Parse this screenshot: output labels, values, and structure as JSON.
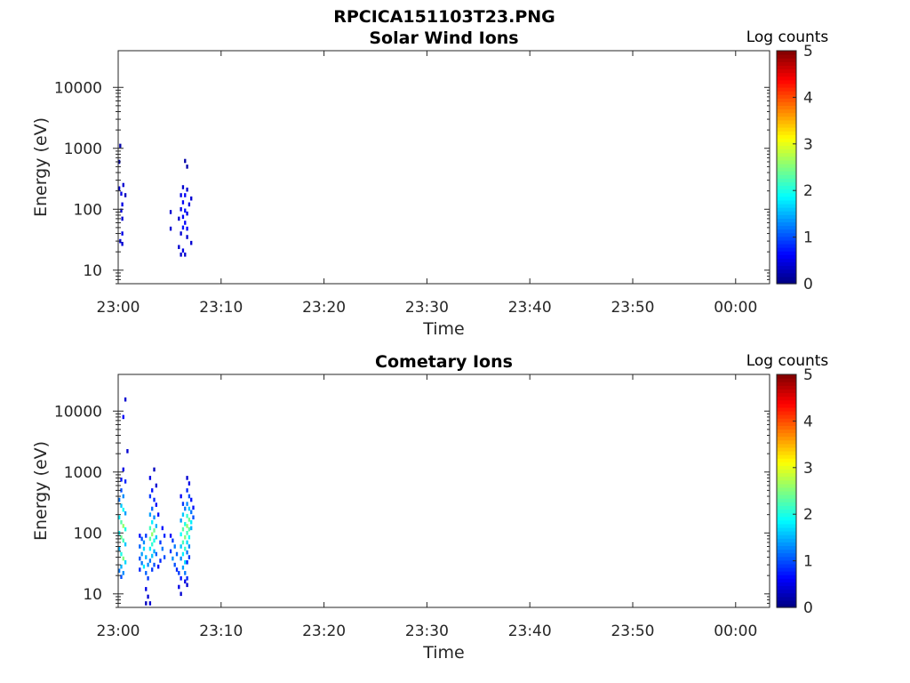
{
  "figure_title": "RPCICA151103T23.PNG",
  "chart_data": [
    {
      "type": "heatmap",
      "title": "Solar Wind Ions",
      "xlabel": "Time",
      "ylabel": "Energy (eV)",
      "x_ticks": [
        "23:00",
        "23:10",
        "23:20",
        "23:30",
        "23:40",
        "23:50",
        "00:00"
      ],
      "x_range_minutes": [
        0,
        63.3
      ],
      "y_scale": "log",
      "y_ticks": [
        "10",
        "100",
        "1000",
        "10000"
      ],
      "y_range": [
        6,
        40000
      ],
      "colorbar": {
        "label": "Log counts",
        "range": [
          0,
          5
        ],
        "ticks": [
          "0",
          "1",
          "2",
          "3",
          "4",
          "5"
        ],
        "colormap": "jet"
      },
      "points": [
        {
          "t": 0.0,
          "e": 600,
          "v": 0.3
        },
        {
          "t": 0.1,
          "e": 1100,
          "v": 0.2
        },
        {
          "t": 0.0,
          "e": 220,
          "v": 0.4
        },
        {
          "t": 0.2,
          "e": 180,
          "v": 0.5
        },
        {
          "t": 0.4,
          "e": 250,
          "v": 0.4
        },
        {
          "t": 0.6,
          "e": 170,
          "v": 0.3
        },
        {
          "t": 0.3,
          "e": 120,
          "v": 0.5
        },
        {
          "t": 0.2,
          "e": 95,
          "v": 0.4
        },
        {
          "t": 0.3,
          "e": 70,
          "v": 0.4
        },
        {
          "t": 0.3,
          "e": 40,
          "v": 0.5
        },
        {
          "t": 0.1,
          "e": 30,
          "v": 0.5
        },
        {
          "t": 0.3,
          "e": 27,
          "v": 0.4
        },
        {
          "t": 5.0,
          "e": 90,
          "v": 0.4
        },
        {
          "t": 5.0,
          "e": 48,
          "v": 0.4
        },
        {
          "t": 6.4,
          "e": 620,
          "v": 0.2
        },
        {
          "t": 6.6,
          "e": 500,
          "v": 0.2
        },
        {
          "t": 6.2,
          "e": 230,
          "v": 0.4
        },
        {
          "t": 6.6,
          "e": 210,
          "v": 0.4
        },
        {
          "t": 6.0,
          "e": 170,
          "v": 0.5
        },
        {
          "t": 6.4,
          "e": 170,
          "v": 0.6
        },
        {
          "t": 7.0,
          "e": 150,
          "v": 0.4
        },
        {
          "t": 6.2,
          "e": 130,
          "v": 0.6
        },
        {
          "t": 6.8,
          "e": 120,
          "v": 0.5
        },
        {
          "t": 6.0,
          "e": 100,
          "v": 0.5
        },
        {
          "t": 6.4,
          "e": 95,
          "v": 0.7
        },
        {
          "t": 6.6,
          "e": 85,
          "v": 0.5
        },
        {
          "t": 6.2,
          "e": 75,
          "v": 0.6
        },
        {
          "t": 5.8,
          "e": 70,
          "v": 0.4
        },
        {
          "t": 6.4,
          "e": 60,
          "v": 0.6
        },
        {
          "t": 6.2,
          "e": 50,
          "v": 0.7
        },
        {
          "t": 6.6,
          "e": 48,
          "v": 0.6
        },
        {
          "t": 6.0,
          "e": 40,
          "v": 0.4
        },
        {
          "t": 6.6,
          "e": 35,
          "v": 0.4
        },
        {
          "t": 7.0,
          "e": 28,
          "v": 0.4
        },
        {
          "t": 5.8,
          "e": 24,
          "v": 0.4
        },
        {
          "t": 6.2,
          "e": 21,
          "v": 0.5
        },
        {
          "t": 6.0,
          "e": 18,
          "v": 0.4
        },
        {
          "t": 6.4,
          "e": 18,
          "v": 0.4
        }
      ]
    },
    {
      "type": "heatmap",
      "title": "Cometary Ions",
      "xlabel": "Time",
      "ylabel": "Energy (eV)",
      "x_ticks": [
        "23:00",
        "23:10",
        "23:20",
        "23:30",
        "23:40",
        "23:50",
        "00:00"
      ],
      "x_range_minutes": [
        0,
        63.3
      ],
      "y_scale": "log",
      "y_ticks": [
        "10",
        "100",
        "1000",
        "10000"
      ],
      "y_range": [
        6,
        40000
      ],
      "colorbar": {
        "label": "Log counts",
        "range": [
          0,
          5
        ],
        "ticks": [
          "0",
          "1",
          "2",
          "3",
          "4",
          "5"
        ],
        "colormap": "jet"
      },
      "points": [
        {
          "t": 0.6,
          "e": 15500,
          "v": 0.4
        },
        {
          "t": 0.4,
          "e": 8000,
          "v": 0.6
        },
        {
          "t": 0.8,
          "e": 2200,
          "v": 0.4
        },
        {
          "t": 0.4,
          "e": 1100,
          "v": 0.5
        },
        {
          "t": 0.2,
          "e": 750,
          "v": 0.7
        },
        {
          "t": 0.6,
          "e": 700,
          "v": 0.8
        },
        {
          "t": 0.2,
          "e": 500,
          "v": 1.0
        },
        {
          "t": 0.4,
          "e": 400,
          "v": 1.3
        },
        {
          "t": 0.0,
          "e": 350,
          "v": 1.2
        },
        {
          "t": 0.2,
          "e": 280,
          "v": 1.6
        },
        {
          "t": 0.4,
          "e": 240,
          "v": 1.9
        },
        {
          "t": 0.6,
          "e": 210,
          "v": 1.4
        },
        {
          "t": 0.0,
          "e": 180,
          "v": 1.8
        },
        {
          "t": 0.2,
          "e": 150,
          "v": 2.3
        },
        {
          "t": 0.4,
          "e": 130,
          "v": 2.6
        },
        {
          "t": 0.6,
          "e": 115,
          "v": 2.0
        },
        {
          "t": 0.0,
          "e": 100,
          "v": 1.9
        },
        {
          "t": 0.2,
          "e": 85,
          "v": 2.4
        },
        {
          "t": 0.4,
          "e": 75,
          "v": 2.2
        },
        {
          "t": 0.6,
          "e": 65,
          "v": 1.6
        },
        {
          "t": 0.0,
          "e": 55,
          "v": 1.5
        },
        {
          "t": 0.2,
          "e": 45,
          "v": 2.0
        },
        {
          "t": 0.4,
          "e": 38,
          "v": 2.5
        },
        {
          "t": 0.6,
          "e": 33,
          "v": 1.7
        },
        {
          "t": 0.2,
          "e": 28,
          "v": 1.5
        },
        {
          "t": 0.0,
          "e": 24,
          "v": 1.2
        },
        {
          "t": 0.4,
          "e": 22,
          "v": 1.3
        },
        {
          "t": 0.2,
          "e": 19,
          "v": 1.0
        },
        {
          "t": 2.0,
          "e": 90,
          "v": 0.7
        },
        {
          "t": 2.2,
          "e": 80,
          "v": 1.0
        },
        {
          "t": 2.4,
          "e": 70,
          "v": 1.3
        },
        {
          "t": 2.0,
          "e": 60,
          "v": 1.1
        },
        {
          "t": 2.4,
          "e": 55,
          "v": 1.7
        },
        {
          "t": 2.6,
          "e": 90,
          "v": 0.9
        },
        {
          "t": 2.2,
          "e": 45,
          "v": 1.4
        },
        {
          "t": 2.0,
          "e": 38,
          "v": 1.0
        },
        {
          "t": 2.6,
          "e": 40,
          "v": 1.5
        },
        {
          "t": 2.2,
          "e": 32,
          "v": 1.2
        },
        {
          "t": 2.4,
          "e": 28,
          "v": 1.8
        },
        {
          "t": 2.8,
          "e": 30,
          "v": 1.3
        },
        {
          "t": 2.0,
          "e": 25,
          "v": 0.8
        },
        {
          "t": 2.6,
          "e": 22,
          "v": 1.1
        },
        {
          "t": 2.8,
          "e": 18,
          "v": 0.9
        },
        {
          "t": 2.6,
          "e": 12,
          "v": 0.5
        },
        {
          "t": 2.8,
          "e": 9,
          "v": 0.4
        },
        {
          "t": 3.0,
          "e": 7,
          "v": 0.4
        },
        {
          "t": 2.6,
          "e": 7,
          "v": 0.3
        },
        {
          "t": 3.0,
          "e": 800,
          "v": 0.5
        },
        {
          "t": 3.4,
          "e": 1100,
          "v": 0.3
        },
        {
          "t": 3.6,
          "e": 600,
          "v": 0.4
        },
        {
          "t": 3.2,
          "e": 500,
          "v": 0.7
        },
        {
          "t": 3.0,
          "e": 400,
          "v": 0.9
        },
        {
          "t": 3.4,
          "e": 350,
          "v": 0.8
        },
        {
          "t": 3.6,
          "e": 290,
          "v": 0.6
        },
        {
          "t": 3.2,
          "e": 250,
          "v": 1.1
        },
        {
          "t": 3.0,
          "e": 200,
          "v": 1.4
        },
        {
          "t": 3.4,
          "e": 180,
          "v": 1.3
        },
        {
          "t": 3.8,
          "e": 200,
          "v": 0.7
        },
        {
          "t": 3.2,
          "e": 150,
          "v": 1.8
        },
        {
          "t": 3.0,
          "e": 120,
          "v": 2.2
        },
        {
          "t": 3.4,
          "e": 110,
          "v": 2.4
        },
        {
          "t": 3.6,
          "e": 130,
          "v": 1.5
        },
        {
          "t": 3.2,
          "e": 95,
          "v": 2.6
        },
        {
          "t": 3.0,
          "e": 80,
          "v": 2.3
        },
        {
          "t": 3.4,
          "e": 75,
          "v": 2.0
        },
        {
          "t": 3.6,
          "e": 85,
          "v": 1.6
        },
        {
          "t": 3.2,
          "e": 65,
          "v": 2.1
        },
        {
          "t": 3.0,
          "e": 55,
          "v": 1.8
        },
        {
          "t": 3.4,
          "e": 50,
          "v": 1.5
        },
        {
          "t": 3.2,
          "e": 42,
          "v": 1.6
        },
        {
          "t": 3.6,
          "e": 45,
          "v": 1.1
        },
        {
          "t": 3.0,
          "e": 35,
          "v": 1.2
        },
        {
          "t": 3.4,
          "e": 30,
          "v": 1.0
        },
        {
          "t": 3.2,
          "e": 25,
          "v": 0.9
        },
        {
          "t": 3.8,
          "e": 28,
          "v": 0.6
        },
        {
          "t": 4.0,
          "e": 70,
          "v": 0.9
        },
        {
          "t": 4.2,
          "e": 55,
          "v": 1.2
        },
        {
          "t": 4.4,
          "e": 40,
          "v": 1.0
        },
        {
          "t": 4.0,
          "e": 35,
          "v": 0.8
        },
        {
          "t": 4.2,
          "e": 120,
          "v": 0.7
        },
        {
          "t": 4.4,
          "e": 90,
          "v": 0.8
        },
        {
          "t": 5.0,
          "e": 90,
          "v": 0.6
        },
        {
          "t": 5.2,
          "e": 75,
          "v": 0.9
        },
        {
          "t": 5.4,
          "e": 60,
          "v": 1.2
        },
        {
          "t": 5.0,
          "e": 50,
          "v": 0.9
        },
        {
          "t": 5.6,
          "e": 45,
          "v": 1.1
        },
        {
          "t": 5.2,
          "e": 38,
          "v": 1.3
        },
        {
          "t": 5.4,
          "e": 30,
          "v": 1.0
        },
        {
          "t": 5.6,
          "e": 25,
          "v": 0.8
        },
        {
          "t": 5.8,
          "e": 22,
          "v": 0.9
        },
        {
          "t": 6.0,
          "e": 18,
          "v": 0.7
        },
        {
          "t": 5.8,
          "e": 13,
          "v": 0.5
        },
        {
          "t": 6.0,
          "e": 10,
          "v": 0.4
        },
        {
          "t": 6.0,
          "e": 400,
          "v": 0.6
        },
        {
          "t": 6.2,
          "e": 300,
          "v": 0.9
        },
        {
          "t": 6.4,
          "e": 250,
          "v": 1.2
        },
        {
          "t": 6.2,
          "e": 200,
          "v": 1.6
        },
        {
          "t": 6.0,
          "e": 160,
          "v": 1.4
        },
        {
          "t": 6.4,
          "e": 140,
          "v": 2.0
        },
        {
          "t": 6.2,
          "e": 115,
          "v": 2.3
        },
        {
          "t": 6.0,
          "e": 95,
          "v": 1.9
        },
        {
          "t": 6.4,
          "e": 85,
          "v": 2.5
        },
        {
          "t": 6.2,
          "e": 70,
          "v": 2.2
        },
        {
          "t": 6.0,
          "e": 60,
          "v": 1.6
        },
        {
          "t": 6.4,
          "e": 55,
          "v": 2.1
        },
        {
          "t": 6.2,
          "e": 45,
          "v": 1.8
        },
        {
          "t": 6.0,
          "e": 38,
          "v": 1.3
        },
        {
          "t": 6.4,
          "e": 33,
          "v": 1.7
        },
        {
          "t": 6.2,
          "e": 27,
          "v": 1.4
        },
        {
          "t": 6.4,
          "e": 22,
          "v": 1.2
        },
        {
          "t": 6.6,
          "e": 18,
          "v": 0.8
        },
        {
          "t": 6.6,
          "e": 800,
          "v": 0.4
        },
        {
          "t": 6.8,
          "e": 650,
          "v": 0.5
        },
        {
          "t": 6.6,
          "e": 500,
          "v": 0.8
        },
        {
          "t": 6.8,
          "e": 400,
          "v": 1.0
        },
        {
          "t": 7.0,
          "e": 350,
          "v": 0.7
        },
        {
          "t": 6.6,
          "e": 300,
          "v": 1.3
        },
        {
          "t": 6.8,
          "e": 250,
          "v": 1.6
        },
        {
          "t": 7.0,
          "e": 220,
          "v": 1.2
        },
        {
          "t": 7.2,
          "e": 260,
          "v": 0.7
        },
        {
          "t": 6.6,
          "e": 190,
          "v": 2.1
        },
        {
          "t": 6.8,
          "e": 165,
          "v": 2.4
        },
        {
          "t": 7.0,
          "e": 150,
          "v": 1.8
        },
        {
          "t": 7.2,
          "e": 180,
          "v": 1.0
        },
        {
          "t": 6.6,
          "e": 130,
          "v": 2.6
        },
        {
          "t": 6.8,
          "e": 115,
          "v": 2.3
        },
        {
          "t": 7.0,
          "e": 120,
          "v": 1.5
        },
        {
          "t": 6.6,
          "e": 100,
          "v": 2.2
        },
        {
          "t": 6.8,
          "e": 85,
          "v": 1.9
        },
        {
          "t": 6.6,
          "e": 70,
          "v": 1.7
        },
        {
          "t": 6.8,
          "e": 60,
          "v": 1.3
        },
        {
          "t": 6.6,
          "e": 48,
          "v": 1.2
        },
        {
          "t": 6.8,
          "e": 40,
          "v": 0.9
        },
        {
          "t": 6.6,
          "e": 33,
          "v": 0.8
        },
        {
          "t": 6.4,
          "e": 16,
          "v": 0.5
        },
        {
          "t": 6.6,
          "e": 14,
          "v": 0.4
        }
      ]
    }
  ]
}
